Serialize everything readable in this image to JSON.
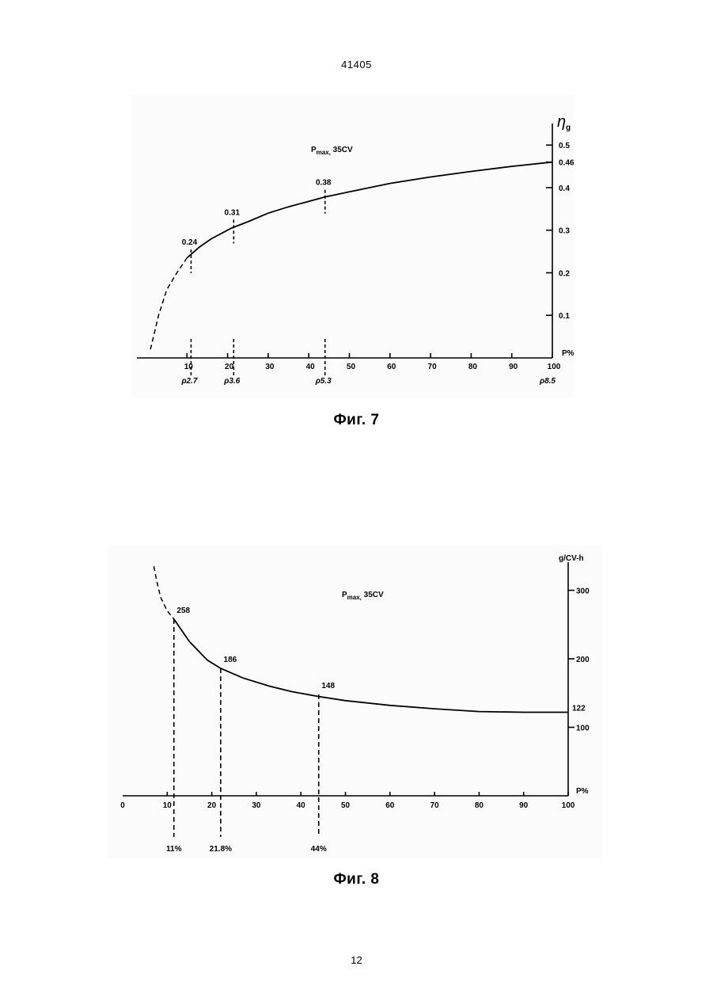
{
  "page": {
    "header": "41405",
    "footer": "12"
  },
  "chart_data": [
    {
      "type": "line",
      "caption": "Фиг. 7",
      "annotation": "Pmax, 35CV",
      "annotation_main": "P",
      "annotation_sub": "max,",
      "annotation_tail": " 35CV",
      "xlabel": "P%",
      "ylabel": "η",
      "ylabel_sub": "g",
      "xlim": [
        0,
        100
      ],
      "ylim": [
        0,
        0.55
      ],
      "xticks": [
        10,
        20,
        30,
        40,
        50,
        60,
        70,
        80,
        90,
        100
      ],
      "xtick_labels": [
        "10",
        "20",
        "30",
        "40",
        "50",
        "60",
        "70",
        "80",
        "90",
        "100"
      ],
      "yticks": [
        0.1,
        0.2,
        0.3,
        0.4,
        0.5
      ],
      "ytick_labels": [
        "0.1",
        "0.2",
        "0.3",
        "0.4",
        "0.5"
      ],
      "dashed_segment": [
        {
          "x": 1,
          "y": 0.02
        },
        {
          "x": 3,
          "y": 0.1
        },
        {
          "x": 5,
          "y": 0.16
        },
        {
          "x": 7.5,
          "y": 0.2
        },
        {
          "x": 10,
          "y": 0.235
        }
      ],
      "series": [
        {
          "x": [
            10,
            13,
            16,
            21,
            25,
            30,
            35,
            44,
            50,
            60,
            70,
            80,
            90,
            100
          ],
          "y": [
            0.235,
            0.26,
            0.28,
            0.305,
            0.32,
            0.34,
            0.355,
            0.378,
            0.39,
            0.41,
            0.425,
            0.438,
            0.45,
            0.46
          ]
        }
      ],
      "markers": [
        {
          "x": 11,
          "y": 0.24,
          "label": "0.24"
        },
        {
          "x": 21.5,
          "y": 0.31,
          "label": "0.31"
        },
        {
          "x": 44,
          "y": 0.38,
          "label": "0.38"
        }
      ],
      "end_label": "0.46",
      "end_value": 0.46,
      "bottom_markers": [
        {
          "x": 11,
          "label": "ρ2.7"
        },
        {
          "x": 21.5,
          "label": "ρ3.6"
        },
        {
          "x": 44,
          "label": "ρ5.3"
        },
        {
          "x": 100,
          "label": "ρ8.5"
        }
      ]
    },
    {
      "type": "line",
      "caption": "Фиг. 8",
      "annotation": "Pmax, 35CV",
      "annotation_main": "P",
      "annotation_sub": "max,",
      "annotation_tail": " 35CV",
      "xlabel": "P%",
      "ylabel": "g/CV-h",
      "xlim": [
        0,
        100
      ],
      "ylim": [
        0,
        340
      ],
      "xticks": [
        0,
        10,
        20,
        30,
        40,
        50,
        60,
        70,
        80,
        90,
        100
      ],
      "xtick_labels": [
        "0",
        "10",
        "20",
        "30",
        "40",
        "50",
        "60",
        "70",
        "80",
        "90",
        "100"
      ],
      "yticks": [
        100,
        200,
        300
      ],
      "ytick_labels": [
        "100",
        "200",
        "300"
      ],
      "dashed_segment": [
        {
          "x": 7,
          "y": 335
        },
        {
          "x": 7.6,
          "y": 315
        },
        {
          "x": 8.5,
          "y": 290
        },
        {
          "x": 10,
          "y": 270
        },
        {
          "x": 11.5,
          "y": 258
        }
      ],
      "series": [
        {
          "x": [
            11.5,
            15,
            19,
            22,
            27,
            33,
            38,
            44,
            50,
            60,
            70,
            80,
            90,
            100
          ],
          "y": [
            258,
            225,
            198,
            186,
            172,
            160,
            152,
            145,
            139,
            132,
            127,
            123,
            122,
            122
          ]
        }
      ],
      "markers": [
        {
          "x": 11.5,
          "y": 258,
          "label": "258"
        },
        {
          "x": 22,
          "y": 186,
          "label": "186"
        },
        {
          "x": 44,
          "y": 148,
          "label": "148"
        }
      ],
      "end_label": "122",
      "end_value": 122,
      "bottom_markers": [
        {
          "x": 11.5,
          "label": "11%"
        },
        {
          "x": 22,
          "label": "21.8%"
        },
        {
          "x": 44,
          "label": "44%"
        }
      ]
    }
  ]
}
